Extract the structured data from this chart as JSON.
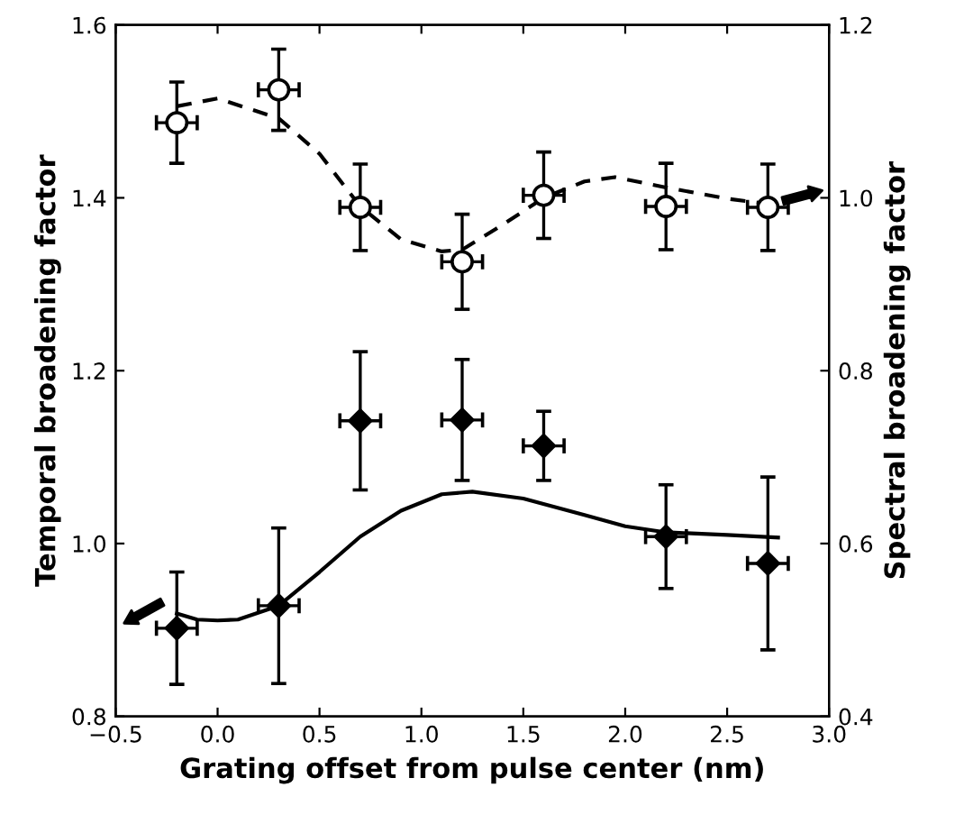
{
  "chart_data": {
    "type": "scatter",
    "xlabel": "Grating offset from pulse center (nm)",
    "ylabel": "Temporal broadening factor",
    "y2label": "Spectral broadening factor",
    "xlim": [
      -0.5,
      3.0
    ],
    "xticks": [
      {
        "value": -0.5,
        "label": "−0.5"
      },
      {
        "value": 0.0,
        "label": "0.0"
      },
      {
        "value": 0.5,
        "label": "0.5"
      },
      {
        "value": 1.0,
        "label": "1.0"
      },
      {
        "value": 1.5,
        "label": "1.5"
      },
      {
        "value": 2.0,
        "label": "2.0"
      },
      {
        "value": 2.5,
        "label": "2.5"
      },
      {
        "value": 3.0,
        "label": "3.0"
      }
    ],
    "ylim": [
      0.8,
      1.6
    ],
    "yticks": [
      {
        "value": 0.8,
        "label": "0.8"
      },
      {
        "value": 1.0,
        "label": "1.0"
      },
      {
        "value": 1.2,
        "label": "1.2"
      },
      {
        "value": 1.4,
        "label": "1.4"
      },
      {
        "value": 1.6,
        "label": "1.6"
      }
    ],
    "y2lim": [
      0.4,
      1.2
    ],
    "y2ticks": [
      {
        "value": 0.4,
        "label": "0.4"
      },
      {
        "value": 0.6,
        "label": "0.6"
      },
      {
        "value": 0.8,
        "label": "0.8"
      },
      {
        "value": 1.0,
        "label": "1.0"
      },
      {
        "value": 1.2,
        "label": "1.2"
      }
    ],
    "grid": false,
    "legend": false,
    "series": [
      {
        "marker": "diamond",
        "color": "#000000",
        "x": [
          -0.2,
          0.3,
          0.7,
          1.2,
          1.6,
          2.2,
          2.7
        ],
        "values": [
          0.902,
          0.928,
          1.142,
          1.143,
          1.113,
          1.008,
          0.977
        ],
        "errors": [
          0.065,
          0.09,
          0.08,
          0.07,
          0.04,
          0.06,
          0.1
        ],
        "xerrors": [
          0.1,
          0.1,
          0.1,
          0.1,
          0.1,
          0.1,
          0.1
        ]
      },
      {
        "marker": "circle",
        "color": "#000000",
        "axis": "y2",
        "x": [
          -0.2,
          0.3,
          0.7,
          1.2,
          1.6,
          2.2,
          2.7
        ],
        "values": [
          1.087,
          1.125,
          0.989,
          0.926,
          1.003,
          0.99,
          0.989
        ],
        "errors": [
          0.047,
          0.047,
          0.05,
          0.055,
          0.05,
          0.05,
          0.05
        ],
        "xerrors": [
          0.1,
          0.1,
          0.1,
          0.1,
          0.1,
          0.1,
          0.1
        ]
      },
      {
        "type": "line",
        "line_style": "solid",
        "color": "#000000",
        "x": [
          -0.2,
          -0.1,
          0.0,
          0.1,
          0.3,
          0.5,
          0.7,
          0.9,
          1.1,
          1.25,
          1.5,
          1.8,
          2.0,
          2.2,
          2.5,
          2.75
        ],
        "values": [
          0.919,
          0.912,
          0.911,
          0.912,
          0.928,
          0.967,
          1.008,
          1.038,
          1.057,
          1.06,
          1.052,
          1.033,
          1.02,
          1.013,
          1.01,
          1.007
        ]
      },
      {
        "type": "line",
        "line_style": "dashed",
        "color": "#000000",
        "axis": "y2",
        "x": [
          -0.2,
          0.0,
          0.3,
          0.5,
          0.7,
          0.9,
          1.1,
          1.2,
          1.4,
          1.6,
          1.8,
          1.95,
          2.2,
          2.5,
          2.7
        ],
        "values": [
          1.106,
          1.115,
          1.092,
          1.051,
          0.99,
          0.952,
          0.938,
          0.94,
          0.969,
          1.0,
          1.019,
          1.024,
          1.012,
          0.999,
          0.993
        ]
      }
    ]
  }
}
